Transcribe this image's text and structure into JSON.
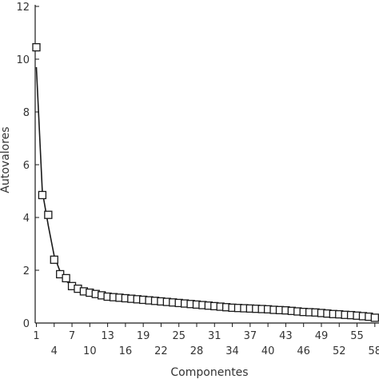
{
  "chart_data": {
    "type": "scatter",
    "xlabel": "Componentes",
    "ylabel": "Autovalores",
    "xlim": [
      0,
      58
    ],
    "ylim": [
      0,
      12
    ],
    "yticks": [
      0,
      2,
      4,
      6,
      8,
      10,
      12
    ],
    "xticks_row1": [
      1,
      7,
      13,
      19,
      25,
      31,
      37,
      43,
      49,
      55
    ],
    "xticks_row2": [
      4,
      10,
      16,
      22,
      28,
      34,
      40,
      46,
      52,
      58
    ],
    "marker": "square",
    "curve": true,
    "colors": {
      "line": "#1a1a1a",
      "axis": "#1a1a1a",
      "text": "#333333"
    },
    "x": [
      1,
      2,
      3,
      4,
      5,
      6,
      7,
      8,
      9,
      10,
      11,
      12,
      13,
      14,
      15,
      16,
      17,
      18,
      19,
      20,
      21,
      22,
      23,
      24,
      25,
      26,
      27,
      28,
      29,
      30,
      31,
      32,
      33,
      34,
      35,
      36,
      37,
      38,
      39,
      40,
      41,
      42,
      43,
      44,
      45,
      46,
      47,
      48,
      49,
      50,
      51,
      52,
      53,
      54,
      55,
      56,
      57,
      58
    ],
    "y": [
      10.45,
      4.85,
      4.1,
      2.4,
      1.85,
      1.7,
      1.4,
      1.3,
      1.2,
      1.15,
      1.1,
      1.05,
      1.0,
      0.98,
      0.96,
      0.94,
      0.92,
      0.9,
      0.88,
      0.86,
      0.84,
      0.82,
      0.8,
      0.78,
      0.76,
      0.74,
      0.72,
      0.7,
      0.68,
      0.66,
      0.64,
      0.62,
      0.6,
      0.58,
      0.57,
      0.56,
      0.55,
      0.54,
      0.53,
      0.52,
      0.5,
      0.49,
      0.48,
      0.46,
      0.44,
      0.42,
      0.41,
      0.4,
      0.38,
      0.36,
      0.34,
      0.33,
      0.31,
      0.3,
      0.28,
      0.26,
      0.24,
      0.2
    ],
    "curve_y": [
      9.7,
      5.0,
      3.7,
      2.55,
      1.95,
      1.6,
      1.4,
      1.3,
      1.2,
      1.15,
      1.1,
      1.05,
      1.0,
      0.98,
      0.96,
      0.94,
      0.92,
      0.9,
      0.88,
      0.86,
      0.84,
      0.82,
      0.8,
      0.78,
      0.76,
      0.74,
      0.72,
      0.7,
      0.68,
      0.66,
      0.64,
      0.62,
      0.6,
      0.58,
      0.57,
      0.56,
      0.55,
      0.54,
      0.53,
      0.52,
      0.5,
      0.49,
      0.48,
      0.46,
      0.44,
      0.42,
      0.41,
      0.4,
      0.38,
      0.36,
      0.34,
      0.33,
      0.31,
      0.3,
      0.28,
      0.26,
      0.24,
      0.2
    ]
  }
}
